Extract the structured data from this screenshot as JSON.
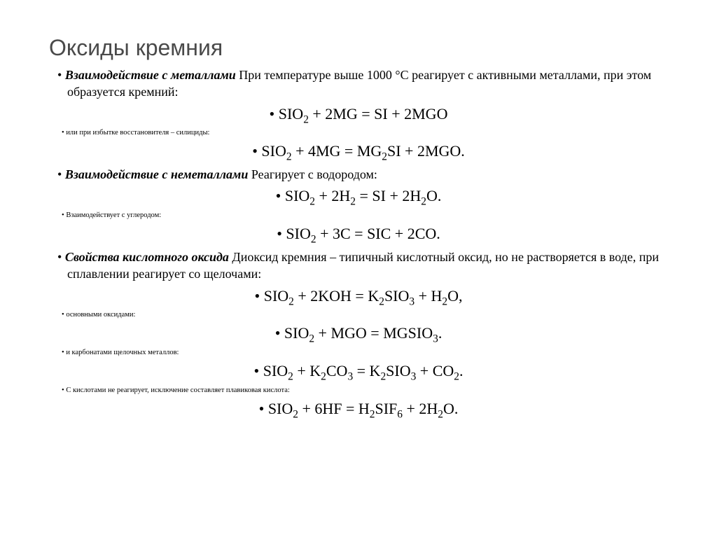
{
  "title": "Оксиды кремния",
  "s1_lead": "Взаимодействие с металлами",
  "s1_rest": " При температуре выше 1000 °С реагирует с активными металлами, при этом образуется кремний:",
  "eq1_html": "SIO<sub>2</sub> + 2MG = SI + 2MGO",
  "small1": "или при избытке восстановителя – силициды:",
  "eq2_html": "SIO<sub>2</sub> + 4MG = MG<sub>2</sub>SI + 2MGO.",
  "s2_lead": "Взаимодействие с неметаллами",
  "s2_rest": " Реагирует с водородом:",
  "eq3_html": "SIO<sub>2</sub> + 2H<sub>2</sub> = SI + 2H<sub>2</sub>O.",
  "small2": "Взаимодействует с углеродом:",
  "eq4_html": "SIO<sub>2</sub> + 3C = SIC + 2CO.",
  "s3_lead": "Свойства кислотного оксида",
  "s3_rest": " Диоксид кремния – типичный кислотный оксид, но не растворяется в воде, при сплавлении реагирует со щелочами:",
  "eq5_html": "SIO<sub>2</sub> + 2KOH = K<sub>2</sub>SIO<sub>3</sub> + H<sub>2</sub>O,",
  "small3": "основными оксидами:",
  "eq6_html": "SIO<sub>2</sub> + MGO = MGSIO<sub>3</sub>.",
  "small4": "и карбонатами щелочных металлов:",
  "eq7_html": "SIO<sub>2</sub> + K<sub>2</sub>CO<sub>3</sub> = K<sub>2</sub>SIO<sub>3</sub> + CO<sub>2</sub>.",
  "small5": "С кислотами не реагирует, исключение составляет плавиковая кислота:",
  "eq8_html": "SIO<sub>2</sub> + 6HF = H<sub>2</sub>SIF<sub>6</sub> + 2H<sub>2</sub>O.",
  "colors": {
    "bg": "#ffffff",
    "text": "#000000",
    "title": "#4a4a4a"
  },
  "fonts": {
    "body": "Times New Roman",
    "title": "Arial",
    "title_size_pt": 32,
    "body_size_pt": 18,
    "small_size_pt": 10.5,
    "eq_size_pt": 22
  }
}
